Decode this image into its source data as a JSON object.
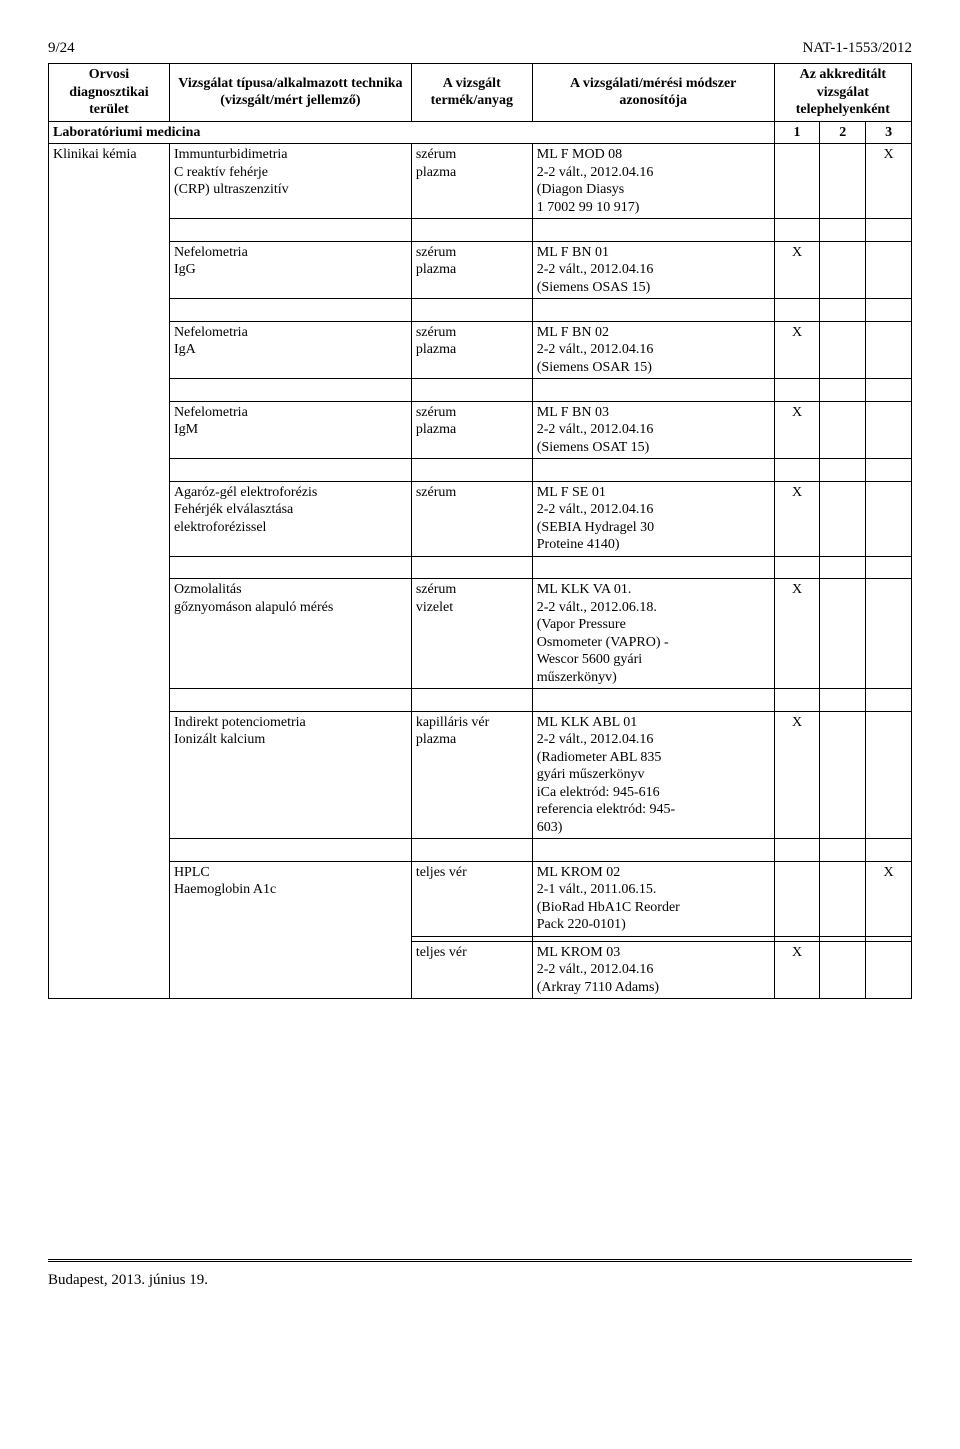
{
  "header": {
    "page_num": "9/24",
    "doc_id": "NAT-1-1553/2012"
  },
  "columns": {
    "c1": "Orvosi diagnosztikai terület",
    "c2": "Vizsgálat típusa/alkalmazott technika (vizsgált/mért jellemző)",
    "c3": "A vizsgált termék/anyag",
    "c4": "A vizsgálati/mérési módszer azonosítója",
    "c5_group": "Az akkreditált vizsgálat telephelyenként"
  },
  "section_row": {
    "label": "Laboratóriumi medicina",
    "s1": "1",
    "s2": "2",
    "s3": "3"
  },
  "rows": [
    {
      "area": "Klinikai kémia",
      "tech": "Immunturbidimetria\nC reaktív fehérje\n(CRP) ultraszenzitív",
      "sample": "szérum\nplazma",
      "method": "ML F MOD 08\n2-2 vált., 2012.04.16\n(Diagon Diasys\n1 7002 99 10 917)",
      "x1": "",
      "x2": "",
      "x3": "X"
    },
    {
      "area": "",
      "tech": "Nefelometria\nIgG",
      "sample": "szérum\nplazma",
      "method": "ML F BN 01\n2-2 vált., 2012.04.16\n(Siemens OSAS 15)",
      "x1": "X",
      "x2": "",
      "x3": ""
    },
    {
      "area": "",
      "tech": "Nefelometria\nIgA",
      "sample": "szérum\nplazma",
      "method": "ML F BN 02\n2-2 vált., 2012.04.16\n(Siemens OSAR 15)",
      "x1": "X",
      "x2": "",
      "x3": ""
    },
    {
      "area": "",
      "tech": "Nefelometria\nIgM",
      "sample": "szérum\nplazma",
      "method": "ML F BN 03\n2-2 vált., 2012.04.16\n(Siemens OSAT 15)",
      "x1": "X",
      "x2": "",
      "x3": ""
    },
    {
      "area": "",
      "tech": "Agaróz-gél elektroforézis\nFehérjék elválasztása\nelektroforézissel",
      "sample": "szérum",
      "method": "ML F SE 01\n2-2 vált., 2012.04.16\n(SEBIA Hydragel 30\nProteine  4140)",
      "x1": "X",
      "x2": "",
      "x3": ""
    },
    {
      "area": "",
      "tech": "Ozmolalitás\ngőznyomáson alapuló mérés",
      "sample": "szérum\nvizelet",
      "method": "ML KLK VA 01.\n2-2 vált., 2012.06.18.\n(Vapor Pressure\nOsmometer (VAPRO) -\nWescor 5600 gyári\nműszerkönyv)",
      "x1": "X",
      "x2": "",
      "x3": ""
    },
    {
      "area": "",
      "tech": "Indirekt potenciometria\nIonizált kalcium",
      "sample": "kapilláris vér\nplazma",
      "method": "ML KLK ABL 01\n2-2 vált., 2012.04.16\n(Radiometer ABL 835\ngyári műszerkönyv\n iCa elektród:  945-616\nreferencia elektród:  945-\n603)",
      "x1": "X",
      "x2": "",
      "x3": ""
    },
    {
      "area": "",
      "tech": "HPLC\nHaemoglobin A1c",
      "sample": "teljes vér",
      "method": "ML KROM 02\n2-1 vált., 2011.06.15.\n(BioRad HbA1C   Reorder\nPack 220-0101)",
      "x1": "",
      "x2": "",
      "x3": "X"
    },
    {
      "area": "",
      "tech": "",
      "sample": "teljes vér",
      "method": "ML KROM 03\n2-2 vált., 2012.04.16\n(Arkray 7110 Adams)",
      "x1": "X",
      "x2": "",
      "x3": ""
    }
  ],
  "footer": "Budapest, 2013. június 19."
}
